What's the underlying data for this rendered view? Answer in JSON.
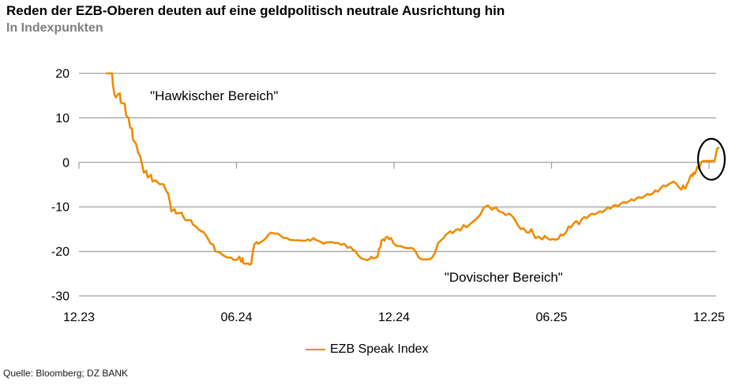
{
  "header": {
    "title": "Reden der EZB-Oberen deuten auf eine geldpolitisch neutrale Ausrichtung hin",
    "subtitle": "In Indexpunkten"
  },
  "legend": {
    "label": "EZB Speak Index"
  },
  "footer": {
    "source": "Quelle: Bloomberg; DZ BANK"
  },
  "colors": {
    "line": "#EF8B00",
    "grid": "#A0A0A0",
    "axis_text": "#000000",
    "subtitle": "#808080",
    "highlight_circle": "#000000"
  },
  "chart_data": {
    "type": "line",
    "title": "Reden der EZB-Oberen deuten auf eine geldpolitisch neutrale Ausrichtung hin",
    "subtitle": "In Indexpunkten",
    "ylabel": "Indexpunkte",
    "xlabel": "",
    "grid": "horizontal",
    "legend_position": "bottom-center",
    "x_axis": {
      "unit": "months since 12.23 (MM.YY ticks)",
      "range_months": [
        0,
        24
      ],
      "tick_months": [
        0,
        6,
        12,
        18,
        24
      ],
      "tick_labels": [
        "12.23",
        "06.24",
        "12.24",
        "06.25",
        "12.25"
      ],
      "crosses_at_value": 0
    },
    "y_axis": {
      "range": [
        -30,
        20
      ],
      "ticks": [
        20,
        10,
        0,
        -10,
        -20,
        -30
      ]
    },
    "series": [
      {
        "name": "EZB Speak Index",
        "color": "#EF8B00",
        "points": [
          [
            1.05,
            20
          ],
          [
            1.26,
            20
          ],
          [
            1.29,
            17.7
          ],
          [
            1.35,
            15.2
          ],
          [
            1.41,
            14.6
          ],
          [
            1.5,
            15.4
          ],
          [
            1.56,
            15.5
          ],
          [
            1.59,
            13.4
          ],
          [
            1.74,
            13.2
          ],
          [
            1.8,
            10.5
          ],
          [
            1.89,
            10
          ],
          [
            1.95,
            7.8
          ],
          [
            2.02,
            7.6
          ],
          [
            2.05,
            5.2
          ],
          [
            2.17,
            4.2
          ],
          [
            2.26,
            2.1
          ],
          [
            2.32,
            1.6
          ],
          [
            2.41,
            -0.5
          ],
          [
            2.47,
            -2.3
          ],
          [
            2.56,
            -1.9
          ],
          [
            2.62,
            -3.4
          ],
          [
            2.74,
            -2.8
          ],
          [
            2.8,
            -4.3
          ],
          [
            2.92,
            -4
          ],
          [
            3.07,
            -4.9
          ],
          [
            3.22,
            -4.9
          ],
          [
            3.31,
            -6.3
          ],
          [
            3.4,
            -7.1
          ],
          [
            3.46,
            -8.7
          ],
          [
            3.52,
            -11
          ],
          [
            3.64,
            -10.5
          ],
          [
            3.7,
            -11.5
          ],
          [
            3.91,
            -11.3
          ],
          [
            3.97,
            -12.2
          ],
          [
            4.06,
            -13
          ],
          [
            4.27,
            -13
          ],
          [
            4.33,
            -13.9
          ],
          [
            4.45,
            -14.4
          ],
          [
            4.6,
            -15.3
          ],
          [
            4.75,
            -15.7
          ],
          [
            4.87,
            -16.7
          ],
          [
            5.02,
            -18.3
          ],
          [
            5.11,
            -18.4
          ],
          [
            5.2,
            -20
          ],
          [
            5.35,
            -20.2
          ],
          [
            5.5,
            -20.9
          ],
          [
            5.65,
            -21.4
          ],
          [
            5.8,
            -21.4
          ],
          [
            5.89,
            -21.9
          ],
          [
            6.02,
            -21.9
          ],
          [
            6.11,
            -21.2
          ],
          [
            6.17,
            -22.3
          ],
          [
            6.23,
            -21.5
          ],
          [
            6.26,
            -22.6
          ],
          [
            6.32,
            -22.8
          ],
          [
            6.44,
            -22.7
          ],
          [
            6.5,
            -23
          ],
          [
            6.56,
            -22.8
          ],
          [
            6.62,
            -20.2
          ],
          [
            6.68,
            -18.4
          ],
          [
            6.77,
            -17.9
          ],
          [
            6.83,
            -18.3
          ],
          [
            6.92,
            -17.9
          ],
          [
            7.01,
            -17.6
          ],
          [
            7.13,
            -17
          ],
          [
            7.22,
            -16.2
          ],
          [
            7.31,
            -15.8
          ],
          [
            7.46,
            -16
          ],
          [
            7.58,
            -16
          ],
          [
            7.73,
            -16.7
          ],
          [
            7.82,
            -17
          ],
          [
            7.91,
            -17
          ],
          [
            8.03,
            -17.4
          ],
          [
            8.18,
            -17.5
          ],
          [
            8.36,
            -17.5
          ],
          [
            8.51,
            -17.6
          ],
          [
            8.63,
            -17.6
          ],
          [
            8.72,
            -17.3
          ],
          [
            8.81,
            -17.6
          ],
          [
            8.93,
            -17
          ],
          [
            9.02,
            -17.4
          ],
          [
            9.11,
            -17.6
          ],
          [
            9.23,
            -17.9
          ],
          [
            9.32,
            -18.3
          ],
          [
            9.41,
            -18
          ],
          [
            9.62,
            -17.9
          ],
          [
            9.74,
            -18.1
          ],
          [
            9.86,
            -18.1
          ],
          [
            9.98,
            -18.5
          ],
          [
            10.11,
            -18.3
          ],
          [
            10.23,
            -19.2
          ],
          [
            10.35,
            -19
          ],
          [
            10.44,
            -19.7
          ],
          [
            10.53,
            -19.9
          ],
          [
            10.62,
            -20.8
          ],
          [
            10.74,
            -21.5
          ],
          [
            10.83,
            -21.7
          ],
          [
            10.98,
            -22
          ],
          [
            11.07,
            -21.7
          ],
          [
            11.13,
            -21.2
          ],
          [
            11.19,
            -21.5
          ],
          [
            11.28,
            -21.5
          ],
          [
            11.37,
            -21.2
          ],
          [
            11.43,
            -19.4
          ],
          [
            11.49,
            -19
          ],
          [
            11.52,
            -17.6
          ],
          [
            11.58,
            -17.3
          ],
          [
            11.64,
            -17.6
          ],
          [
            11.67,
            -17
          ],
          [
            11.73,
            -16.7
          ],
          [
            11.79,
            -17
          ],
          [
            11.82,
            -17.3
          ],
          [
            11.88,
            -17
          ],
          [
            11.94,
            -17.6
          ],
          [
            11.97,
            -18.1
          ],
          [
            12.03,
            -18.5
          ],
          [
            12.12,
            -18.8
          ],
          [
            12.24,
            -18.8
          ],
          [
            12.33,
            -19
          ],
          [
            12.42,
            -19.2
          ],
          [
            12.54,
            -19.3
          ],
          [
            12.66,
            -19.2
          ],
          [
            12.75,
            -19.5
          ],
          [
            12.84,
            -20.2
          ],
          [
            12.93,
            -21.3
          ],
          [
            13.05,
            -21.8
          ],
          [
            13.23,
            -21.8
          ],
          [
            13.38,
            -21.7
          ],
          [
            13.47,
            -21.3
          ],
          [
            13.56,
            -20.3
          ],
          [
            13.68,
            -18.1
          ],
          [
            13.77,
            -17.6
          ],
          [
            13.89,
            -17
          ],
          [
            13.98,
            -16.2
          ],
          [
            14.08,
            -15.8
          ],
          [
            14.14,
            -15.5
          ],
          [
            14.23,
            -15.9
          ],
          [
            14.35,
            -15.2
          ],
          [
            14.44,
            -15
          ],
          [
            14.53,
            -15.3
          ],
          [
            14.65,
            -14.1
          ],
          [
            14.77,
            -14.6
          ],
          [
            14.89,
            -13.9
          ],
          [
            15.04,
            -13.2
          ],
          [
            15.13,
            -12.7
          ],
          [
            15.28,
            -11.8
          ],
          [
            15.43,
            -10.1
          ],
          [
            15.58,
            -9.7
          ],
          [
            15.73,
            -10.6
          ],
          [
            15.88,
            -10.1
          ],
          [
            16,
            -11
          ],
          [
            16.15,
            -11.3
          ],
          [
            16.24,
            -11.8
          ],
          [
            16.39,
            -11.5
          ],
          [
            16.54,
            -12.3
          ],
          [
            16.63,
            -13.2
          ],
          [
            16.75,
            -14.4
          ],
          [
            16.84,
            -15
          ],
          [
            16.93,
            -14.8
          ],
          [
            17.05,
            -15.7
          ],
          [
            17.14,
            -15.8
          ],
          [
            17.23,
            -15
          ],
          [
            17.38,
            -17
          ],
          [
            17.5,
            -16.7
          ],
          [
            17.65,
            -17.3
          ],
          [
            17.74,
            -16.5
          ],
          [
            17.83,
            -17
          ],
          [
            17.95,
            -17.4
          ],
          [
            18.05,
            -17.2
          ],
          [
            18.14,
            -17.4
          ],
          [
            18.26,
            -17.2
          ],
          [
            18.35,
            -16.2
          ],
          [
            18.44,
            -16.4
          ],
          [
            18.56,
            -15.7
          ],
          [
            18.65,
            -14.4
          ],
          [
            18.74,
            -14.6
          ],
          [
            18.86,
            -13.6
          ],
          [
            18.95,
            -13.2
          ],
          [
            19.04,
            -13.9
          ],
          [
            19.16,
            -12.7
          ],
          [
            19.25,
            -12.3
          ],
          [
            19.34,
            -12.5
          ],
          [
            19.46,
            -11.8
          ],
          [
            19.55,
            -11.5
          ],
          [
            19.64,
            -11.7
          ],
          [
            19.76,
            -11.3
          ],
          [
            19.85,
            -11
          ],
          [
            19.94,
            -11.2
          ],
          [
            20.06,
            -10.6
          ],
          [
            20.15,
            -10.1
          ],
          [
            20.24,
            -10.4
          ],
          [
            20.36,
            -9.7
          ],
          [
            20.45,
            -9.6
          ],
          [
            20.54,
            -9.8
          ],
          [
            20.66,
            -9.2
          ],
          [
            20.75,
            -8.9
          ],
          [
            20.84,
            -9.1
          ],
          [
            20.96,
            -8.7
          ],
          [
            21.05,
            -8.3
          ],
          [
            21.14,
            -8.6
          ],
          [
            21.26,
            -8
          ],
          [
            21.35,
            -7.8
          ],
          [
            21.44,
            -8
          ],
          [
            21.56,
            -7.5
          ],
          [
            21.65,
            -7.1
          ],
          [
            21.74,
            -7.3
          ],
          [
            21.86,
            -7
          ],
          [
            21.95,
            -6.3
          ],
          [
            22.05,
            -6.6
          ],
          [
            22.17,
            -5.7
          ],
          [
            22.26,
            -5.2
          ],
          [
            22.35,
            -5.4
          ],
          [
            22.47,
            -4.9
          ],
          [
            22.56,
            -4.6
          ],
          [
            22.65,
            -4.3
          ],
          [
            22.77,
            -4.9
          ],
          [
            22.86,
            -5.7
          ],
          [
            22.95,
            -6.1
          ],
          [
            23.01,
            -5.2
          ],
          [
            23.1,
            -5.9
          ],
          [
            23.16,
            -4.9
          ],
          [
            23.22,
            -4.3
          ],
          [
            23.25,
            -3.7
          ],
          [
            23.31,
            -2.8
          ],
          [
            23.37,
            -3.1
          ],
          [
            23.4,
            -2.3
          ],
          [
            23.46,
            -2.6
          ],
          [
            23.52,
            -1.7
          ],
          [
            23.55,
            -1
          ],
          [
            23.61,
            -1.4
          ],
          [
            23.67,
            -0.5
          ],
          [
            23.7,
            0
          ],
          [
            23.76,
            0.3
          ],
          [
            23.91,
            0.3
          ],
          [
            24.06,
            0.3
          ],
          [
            24.21,
            0.4
          ],
          [
            24.24,
            1.2
          ],
          [
            24.27,
            2
          ],
          [
            24.3,
            3
          ],
          [
            24.36,
            3.3
          ]
        ]
      }
    ],
    "annotations": [
      {
        "id": "hawkish",
        "type": "text",
        "text": "\"Hawkischer Bereich\"",
        "month": 2.71,
        "value": 14.8
      },
      {
        "id": "dovish",
        "type": "text",
        "text": "\"Dovischer Bereich\"",
        "month": 13.92,
        "value": -25.9
      },
      {
        "id": "highlight",
        "type": "ellipse",
        "month": 24.09,
        "value": 0.7,
        "rx_months": 0.51,
        "ry_values": 4.6
      }
    ]
  }
}
